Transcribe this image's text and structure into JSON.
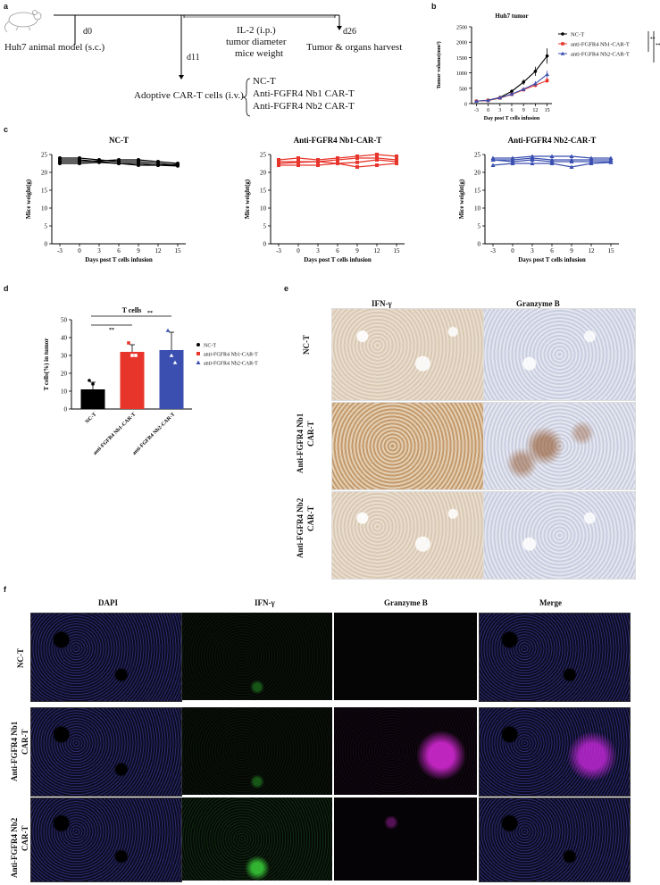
{
  "panels": {
    "a": "a",
    "b": "b",
    "c": "c",
    "d": "d",
    "e": "e",
    "f": "f"
  },
  "panel_a": {
    "d0": "d0",
    "model": "Huh7 animal model (s.c.)",
    "il2": "IL-2 (i.p.)",
    "tumor_diameter": "tumor diameter",
    "mice_weight": "mice weight",
    "d26": "d26",
    "harvest": "Tumor & organs harvest",
    "d11": "d11",
    "adoptive": "Adoptive CAR-T cells (i.v.)",
    "groups": [
      "NC-T",
      "Anti-FGFR4 Nb1 CAR-T",
      "Anti-FGFR4 Nb2 CAR-T"
    ]
  },
  "colors": {
    "nct": "#000000",
    "nb1": "#e8352b",
    "nb2": "#3a4fb0"
  },
  "chart_data": [
    {
      "id": "b",
      "type": "line",
      "title": "Huh7 tumor",
      "xlabel": "Day post T cells infusion",
      "ylabel": "Tumor volume(mm³)",
      "x": [
        -3,
        0,
        3,
        6,
        9,
        12,
        15
      ],
      "xticks": [
        "-3",
        "0",
        "3",
        "6",
        "9",
        "12",
        "15"
      ],
      "yticks": [
        "0",
        "500",
        "1000",
        "1500",
        "2000",
        "2500"
      ],
      "ylim": [
        0,
        2500
      ],
      "series": [
        {
          "name": "NC-T",
          "values": [
            80,
            110,
            200,
            400,
            700,
            1050,
            1550
          ]
        },
        {
          "name": "anti-FGFR4 Nb1-CAR-T",
          "values": [
            80,
            100,
            180,
            300,
            450,
            600,
            750
          ]
        },
        {
          "name": "anti-FGFR4 Nb2-CAR-T",
          "values": [
            80,
            105,
            190,
            310,
            470,
            650,
            950
          ]
        }
      ],
      "significance": [
        "**",
        "**"
      ]
    },
    {
      "id": "c1",
      "type": "line",
      "title": "NC-T",
      "xlabel": "Days post T cells infusion",
      "ylabel": "Mice weight(g)",
      "x": [
        -3,
        0,
        3,
        6,
        9,
        12,
        15
      ],
      "xticks": [
        "-3",
        "0",
        "3",
        "6",
        "9",
        "12",
        "15"
      ],
      "yticks": [
        "0",
        "5",
        "10",
        "15",
        "20",
        "25"
      ],
      "ylim": [
        0,
        25
      ],
      "series": [
        {
          "values": [
            24,
            24,
            23.5,
            23,
            23,
            22.5,
            22
          ]
        },
        {
          "values": [
            23.5,
            23.5,
            23,
            22.5,
            22.5,
            22,
            21.8
          ]
        },
        {
          "values": [
            23,
            23,
            23.2,
            23.5,
            23.5,
            23,
            22.5
          ]
        },
        {
          "values": [
            22.5,
            22.5,
            22.8,
            22.5,
            22,
            22,
            22.2
          ]
        }
      ]
    },
    {
      "id": "c2",
      "type": "line",
      "title": "Anti-FGFR4 Nb1-CAR-T",
      "xlabel": "Days post T cells infusion",
      "ylabel": "Mice weight(g)",
      "x": [
        -3,
        0,
        3,
        6,
        9,
        12,
        15
      ],
      "xticks": [
        "-3",
        "0",
        "3",
        "6",
        "9",
        "12",
        "15"
      ],
      "yticks": [
        "0",
        "5",
        "10",
        "15",
        "20",
        "25"
      ],
      "ylim": [
        0,
        25
      ],
      "series": [
        {
          "values": [
            23.5,
            24,
            23.5,
            24,
            24.5,
            25,
            24.5
          ]
        },
        {
          "values": [
            23,
            23,
            23,
            23.5,
            24,
            24,
            23.5
          ]
        },
        {
          "values": [
            22.5,
            22.8,
            23,
            22.5,
            22.8,
            23.5,
            23
          ]
        },
        {
          "values": [
            22,
            22,
            22,
            22.5,
            21.5,
            22,
            22.5
          ]
        }
      ]
    },
    {
      "id": "c3",
      "type": "line",
      "title": "Anti-FGFR4 Nb2-CAR-T",
      "xlabel": "Days post T cells infusion",
      "ylabel": "Mice weight(g)",
      "x": [
        -3,
        0,
        3,
        6,
        9,
        12,
        15
      ],
      "xticks": [
        "-3",
        "0",
        "3",
        "6",
        "9",
        "12",
        "15"
      ],
      "yticks": [
        "0",
        "5",
        "10",
        "15",
        "20",
        "25"
      ],
      "ylim": [
        0,
        25
      ],
      "series": [
        {
          "values": [
            24,
            24,
            24.5,
            24.5,
            24.5,
            24,
            24
          ]
        },
        {
          "values": [
            23.5,
            23.5,
            24,
            23.5,
            23.5,
            23.5,
            23.5
          ]
        },
        {
          "values": [
            23.5,
            23,
            23.5,
            23,
            23,
            23,
            23
          ]
        },
        {
          "values": [
            22,
            22.5,
            22.5,
            22.5,
            21.5,
            22.5,
            22.8
          ]
        }
      ]
    },
    {
      "id": "d",
      "type": "bar",
      "title": "T cells",
      "ylabel": "T cells(%) in tumor",
      "categories": [
        "NC-T",
        "anti-FGFR4 Nb1-CAR-T",
        "anti-FGFR4 Nb2-CAR-T"
      ],
      "values": [
        11,
        32,
        33
      ],
      "errors": [
        4,
        4,
        10
      ],
      "points": [
        [
          16,
          14,
          6
        ],
        [
          37,
          30,
          30
        ],
        [
          44,
          30,
          26
        ]
      ],
      "yticks": [
        "0",
        "10",
        "20",
        "30",
        "40",
        "50"
      ],
      "ylim": [
        0,
        50
      ],
      "legend": [
        "NC-T",
        "anti-FGFR4 Nb1-CAR-T",
        "anti-FGFR4 Nb2-CAR-T"
      ],
      "significance": [
        "**",
        "**"
      ]
    }
  ],
  "panel_e": {
    "cols": [
      "IFN-γ",
      "Granzyme B"
    ],
    "rows": [
      "NC-T",
      "Anti-FGFR4 Nb1 CAR-T",
      "Anti-FGFR4 Nb2 CAR-T"
    ],
    "row_lines": [
      [
        "NC-T"
      ],
      [
        "Anti-FGFR4 Nb1",
        "CAR-T"
      ],
      [
        "Anti-FGFR4 Nb2",
        "CAR-T"
      ]
    ]
  },
  "panel_f": {
    "cols": [
      "DAPI",
      "IFN-γ",
      "Granzyme B",
      "Merge"
    ],
    "row_lines": [
      [
        "NC-T"
      ],
      [
        "Anti-FGFR4 Nb1",
        "CAR-T"
      ],
      [
        "Anti-FGFR4 Nb2",
        "CAR-T"
      ]
    ]
  }
}
